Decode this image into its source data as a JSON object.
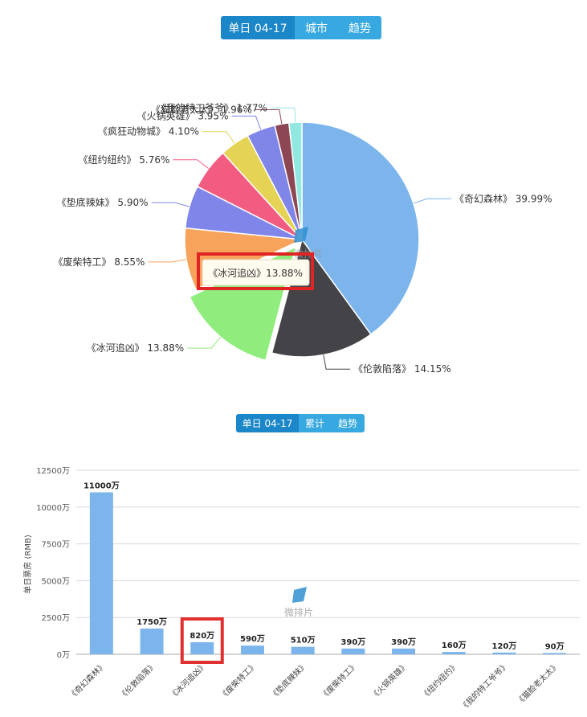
{
  "top_tabs": [
    {
      "label": "单日 04-17",
      "active": true
    },
    {
      "label": "城市",
      "active": false
    },
    {
      "label": "趋势",
      "active": false
    }
  ],
  "bottom_tabs": [
    {
      "label": "单日 04-17",
      "active": true
    },
    {
      "label": "累计",
      "active": false
    },
    {
      "label": "趋势",
      "active": false
    }
  ],
  "tooltip": "《冰河追凶》13.88%",
  "watermark": "微排片",
  "chart_data": [
    {
      "type": "pie",
      "slices": [
        {
          "label": "《奇幻森林》",
          "value": 39.99,
          "text": "39.99%",
          "color": "#7cb5ec"
        },
        {
          "label": "《伦敦陷落》",
          "value": 14.15,
          "text": "14.15%",
          "color": "#434348"
        },
        {
          "label": "《冰河追凶》",
          "value": 13.88,
          "text": "13.88%",
          "color": "#90ed7d"
        },
        {
          "label": "《废柴特工》",
          "value": 8.55,
          "text": "8.55%",
          "color": "#f7a35c"
        },
        {
          "label": "《垫底辣妹》",
          "value": 5.9,
          "text": "5.90%",
          "color": "#8085e9"
        },
        {
          "label": "《纽约纽约》",
          "value": 5.76,
          "text": "5.76%",
          "color": "#f15c80"
        },
        {
          "label": "《疯狂动物城》",
          "value": 4.1,
          "text": "4.10%",
          "color": "#e4d354"
        },
        {
          "label": "《火锅英雄》",
          "value": 3.95,
          "text": "3.95%",
          "color": "#8085e8"
        },
        {
          "label": "《猫脸老太太》",
          "value": 1.96,
          "text": "1.96%",
          "color": "#8d4653"
        },
        {
          "label": "《我的特工爷爷》",
          "value": 1.77,
          "text": "1.77%",
          "color": "#91e8e1"
        }
      ],
      "sliced": "《冰河追凶》"
    },
    {
      "type": "bar",
      "ylabel": "单日票房 (RMB)",
      "ylim": [
        0,
        12500
      ],
      "yticks": [
        "0万",
        "2500万",
        "5000万",
        "7500万",
        "10000万",
        "12500万"
      ],
      "categories": [
        "《奇幻森林》",
        "《伦敦陷落》",
        "《冰河追凶》",
        "《废柴特工》",
        "《垫底辣妹》",
        "《废柴特工》",
        "《火锅英雄》",
        "《纽约纽约》",
        "《我的特工爷爷》",
        "《猫脸老太太》"
      ],
      "values": [
        11000,
        1750,
        820,
        590,
        510,
        390,
        390,
        160,
        120,
        90
      ],
      "value_labels": [
        "11000万",
        "1750万",
        "820万",
        "590万",
        "510万",
        "390万",
        "390万",
        "160万",
        "120万",
        "90万"
      ],
      "bar_color": "#7cb5ec",
      "highlight_color": "#e03030",
      "grid": true
    }
  ]
}
